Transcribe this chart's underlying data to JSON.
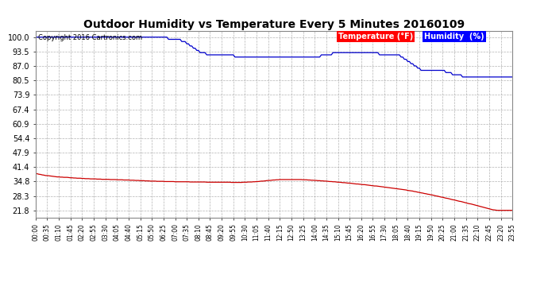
{
  "title": "Outdoor Humidity vs Temperature Every 5 Minutes 20160109",
  "copyright": "Copyright 2016 Cartronics.com",
  "bg_color": "#ffffff",
  "plot_bg_color": "#ffffff",
  "grid_color": "#a0a0a0",
  "humidity_color": "#0000cc",
  "temp_color": "#cc0000",
  "legend_temp_label": "Temperature (°F)",
  "legend_hum_label": "Humidity  (%)",
  "legend_temp_bg": "#ff0000",
  "legend_hum_bg": "#0000ff",
  "legend_text_color": "#ffffff",
  "yticks": [
    21.8,
    28.3,
    34.8,
    41.4,
    47.9,
    54.4,
    60.9,
    67.4,
    73.9,
    80.5,
    87.0,
    93.5,
    100.0
  ],
  "ymin": 18.55,
  "ymax": 102.63,
  "n_points": 288,
  "humidity_data": [
    100,
    100,
    100,
    100,
    100,
    100,
    100,
    100,
    100,
    100,
    100,
    100,
    100,
    100,
    100,
    100,
    100,
    100,
    100,
    100,
    100,
    100,
    100,
    100,
    100,
    100,
    100,
    100,
    100,
    100,
    100,
    100,
    100,
    100,
    100,
    100,
    100,
    100,
    100,
    100,
    100,
    100,
    100,
    100,
    100,
    100,
    100,
    100,
    100,
    100,
    100,
    100,
    100,
    100,
    100,
    100,
    100,
    100,
    100,
    100,
    100,
    100,
    100,
    100,
    100,
    100,
    100,
    100,
    100,
    100,
    100,
    100,
    100,
    100,
    100,
    100,
    100,
    100,
    100,
    100,
    99,
    99,
    99,
    99,
    99,
    99,
    99,
    99,
    98,
    98,
    98,
    97,
    97,
    96,
    96,
    95,
    95,
    94,
    94,
    93,
    93,
    93,
    93,
    92,
    92,
    92,
    92,
    92,
    92,
    92,
    92,
    92,
    92,
    92,
    92,
    92,
    92,
    92,
    92,
    92,
    91,
    91,
    91,
    91,
    91,
    91,
    91,
    91,
    91,
    91,
    91,
    91,
    91,
    91,
    91,
    91,
    91,
    91,
    91,
    91,
    91,
    91,
    91,
    91,
    91,
    91,
    91,
    91,
    91,
    91,
    91,
    91,
    91,
    91,
    91,
    91,
    91,
    91,
    91,
    91,
    91,
    91,
    91,
    91,
    91,
    91,
    91,
    91,
    91,
    91,
    91,
    91,
    92,
    92,
    92,
    92,
    92,
    92,
    92,
    93,
    93,
    93,
    93,
    93,
    93,
    93,
    93,
    93,
    93,
    93,
    93,
    93,
    93,
    93,
    93,
    93,
    93,
    93,
    93,
    93,
    93,
    93,
    93,
    93,
    93,
    93,
    93,
    92,
    92,
    92,
    92,
    92,
    92,
    92,
    92,
    92,
    92,
    92,
    92,
    92,
    91,
    91,
    90,
    90,
    89,
    89,
    88,
    88,
    87,
    87,
    86,
    86,
    85,
    85,
    85,
    85,
    85,
    85,
    85,
    85,
    85,
    85,
    85,
    85,
    85,
    85,
    85,
    84,
    84,
    84,
    84,
    83,
    83,
    83,
    83,
    83,
    83,
    82,
    82,
    82,
    82,
    82,
    82,
    82,
    82,
    82,
    82,
    82,
    82,
    82,
    82,
    82,
    82,
    82,
    82,
    82,
    82,
    82,
    82,
    82,
    82,
    82,
    82,
    82,
    82,
    82,
    82,
    82,
    82,
    84
  ],
  "temp_data": [
    38.5,
    38.3,
    38.1,
    38.0,
    37.8,
    37.7,
    37.5,
    37.5,
    37.4,
    37.3,
    37.2,
    37.1,
    37.0,
    36.9,
    36.9,
    36.8,
    36.8,
    36.7,
    36.7,
    36.7,
    36.6,
    36.5,
    36.5,
    36.4,
    36.4,
    36.3,
    36.3,
    36.3,
    36.2,
    36.2,
    36.1,
    36.1,
    36.1,
    36.0,
    36.0,
    36.0,
    36.0,
    35.9,
    35.9,
    35.9,
    35.8,
    35.8,
    35.8,
    35.8,
    35.8,
    35.7,
    35.7,
    35.7,
    35.7,
    35.6,
    35.6,
    35.6,
    35.6,
    35.5,
    35.5,
    35.5,
    35.5,
    35.4,
    35.4,
    35.4,
    35.3,
    35.3,
    35.3,
    35.2,
    35.2,
    35.2,
    35.1,
    35.1,
    35.1,
    35.0,
    35.0,
    35.0,
    35.0,
    34.9,
    34.9,
    34.9,
    34.9,
    34.9,
    34.8,
    34.8,
    34.8,
    34.8,
    34.8,
    34.8,
    34.7,
    34.7,
    34.7,
    34.7,
    34.7,
    34.7,
    34.7,
    34.7,
    34.7,
    34.6,
    34.6,
    34.6,
    34.6,
    34.6,
    34.6,
    34.6,
    34.6,
    34.6,
    34.6,
    34.5,
    34.5,
    34.5,
    34.5,
    34.5,
    34.5,
    34.5,
    34.5,
    34.5,
    34.5,
    34.5,
    34.5,
    34.5,
    34.5,
    34.5,
    34.4,
    34.4,
    34.4,
    34.4,
    34.4,
    34.4,
    34.4,
    34.5,
    34.5,
    34.5,
    34.6,
    34.6,
    34.6,
    34.7,
    34.7,
    34.8,
    34.8,
    34.9,
    35.0,
    35.0,
    35.1,
    35.2,
    35.3,
    35.3,
    35.4,
    35.5,
    35.5,
    35.6,
    35.6,
    35.7,
    35.7,
    35.7,
    35.7,
    35.7,
    35.7,
    35.7,
    35.7,
    35.7,
    35.7,
    35.7,
    35.7,
    35.7,
    35.7,
    35.6,
    35.6,
    35.6,
    35.5,
    35.5,
    35.4,
    35.4,
    35.3,
    35.3,
    35.2,
    35.2,
    35.1,
    35.1,
    35.0,
    35.0,
    34.9,
    34.8,
    34.8,
    34.7,
    34.7,
    34.6,
    34.5,
    34.5,
    34.4,
    34.3,
    34.3,
    34.2,
    34.1,
    34.1,
    34.0,
    33.9,
    33.8,
    33.7,
    33.7,
    33.6,
    33.5,
    33.4,
    33.4,
    33.3,
    33.2,
    33.1,
    33.0,
    32.9,
    32.8,
    32.8,
    32.7,
    32.6,
    32.5,
    32.4,
    32.3,
    32.2,
    32.1,
    32.0,
    31.9,
    31.8,
    31.7,
    31.6,
    31.5,
    31.4,
    31.3,
    31.2,
    31.1,
    31.0,
    30.8,
    30.7,
    30.6,
    30.5,
    30.3,
    30.2,
    30.0,
    29.9,
    29.7,
    29.6,
    29.4,
    29.3,
    29.1,
    29.0,
    28.8,
    28.7,
    28.5,
    28.3,
    28.2,
    28.0,
    27.8,
    27.7,
    27.5,
    27.3,
    27.2,
    27.0,
    26.8,
    26.6,
    26.5,
    26.3,
    26.1,
    25.9,
    25.8,
    25.6,
    25.4,
    25.2,
    25.0,
    24.8,
    24.7,
    24.5,
    24.3,
    24.1,
    23.9,
    23.7,
    23.5,
    23.3,
    23.1,
    22.9,
    22.7,
    22.5,
    22.3,
    22.1,
    22.0,
    21.9,
    21.8,
    21.8,
    21.8,
    21.8,
    21.8,
    21.8,
    21.8,
    21.8,
    21.8,
    21.8,
    21.8,
    21.8
  ],
  "x_tick_labels": [
    "00:00",
    "00:35",
    "01:10",
    "01:45",
    "02:20",
    "02:55",
    "03:30",
    "04:05",
    "04:40",
    "05:15",
    "05:50",
    "06:25",
    "07:00",
    "07:35",
    "08:10",
    "08:45",
    "09:20",
    "09:55",
    "10:30",
    "11:05",
    "11:40",
    "12:15",
    "12:50",
    "13:25",
    "14:00",
    "14:35",
    "15:10",
    "15:45",
    "16:20",
    "16:55",
    "17:30",
    "18:05",
    "18:40",
    "19:15",
    "19:50",
    "20:25",
    "21:00",
    "21:35",
    "22:10",
    "22:45",
    "23:20",
    "23:55"
  ]
}
